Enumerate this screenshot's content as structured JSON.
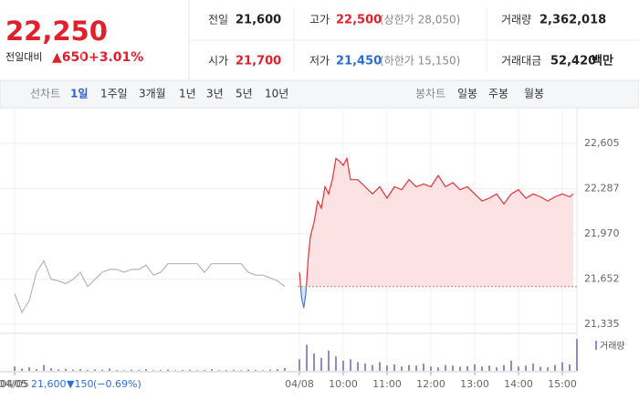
{
  "header": {
    "price": "22,250",
    "change_label": "전일대비",
    "change": "▲650",
    "change_rate": "+3.01%",
    "stats": [
      {
        "label": "전일",
        "value": "21,600"
      },
      {
        "label": "고가",
        "value": "22,500",
        "note": "(상한가 28,050)"
      },
      {
        "label": "거래량",
        "value": "2,362,018"
      },
      {
        "label": "시가",
        "value": "21,700"
      },
      {
        "label": "저가",
        "value": "21,450",
        "note": "(하한가 15,150)"
      },
      {
        "label": "거래대금",
        "value": "52,420",
        "unit": "백만"
      }
    ]
  },
  "tabs": {
    "line_label": "선차트",
    "line_periods": [
      "1일",
      "1주일",
      "3개월",
      "1년",
      "3년",
      "5년",
      "10년"
    ],
    "candle_label": "봉차트",
    "candle_periods": [
      "일봉",
      "주봉",
      "월봉"
    ]
  },
  "status": {
    "date": "04/05",
    "price": "21,600",
    "change": "▼150",
    "rate": "(−0.69%)"
  },
  "chart_data": [
    {
      "type": "line",
      "baseline": 21600,
      "xlim": [
        -410,
        380
      ],
      "ylim": [
        21271,
        22778
      ],
      "yticks": [
        {
          "value": 21335,
          "label": "21,335"
        },
        {
          "value": 21652,
          "label": "21,652"
        },
        {
          "value": 21970,
          "label": "21,970"
        },
        {
          "value": 22287,
          "label": "22,287"
        },
        {
          "value": 22605,
          "label": "22,605"
        }
      ],
      "xticks": [
        {
          "value": -390,
          "label": "04/05"
        },
        {
          "value": 0,
          "label": "04/08"
        },
        {
          "value": 60,
          "label": "10:00"
        },
        {
          "value": 120,
          "label": "11:00"
        },
        {
          "value": 180,
          "label": "12:00"
        },
        {
          "value": 240,
          "label": "13:00"
        },
        {
          "value": 300,
          "label": "14:00"
        },
        {
          "value": 360,
          "label": "15:00"
        }
      ],
      "series": [
        {
          "color": "#b5b5b5",
          "x": [
            -390,
            -380,
            -370,
            -360,
            -350,
            -340,
            -330,
            -320,
            -310,
            -300,
            -290,
            -280,
            -270,
            -260,
            -250,
            -240,
            -230,
            -220,
            -210,
            -200,
            -190,
            -180,
            -170,
            -160,
            -150,
            -140,
            -130,
            -120,
            -110,
            -100,
            -90,
            -80,
            -70,
            -60,
            -50,
            -40,
            -30,
            -20
          ],
          "values": [
            21550,
            21420,
            21500,
            21700,
            21780,
            21650,
            21640,
            21620,
            21650,
            21700,
            21600,
            21650,
            21700,
            21720,
            21720,
            21700,
            21720,
            21720,
            21750,
            21680,
            21700,
            21760,
            21760,
            21760,
            21760,
            21760,
            21700,
            21760,
            21760,
            21760,
            21760,
            21760,
            21700,
            21680,
            21680,
            21660,
            21640,
            21600
          ]
        },
        {
          "color": "#e8303a",
          "below_color": "#3d7dd8",
          "fill": "#fde2e3",
          "below_fill": "#d9e6fa",
          "x": [
            0,
            3,
            6,
            9,
            12,
            15,
            20,
            25,
            30,
            35,
            40,
            45,
            50,
            55,
            60,
            65,
            70,
            80,
            90,
            100,
            110,
            120,
            130,
            140,
            150,
            160,
            170,
            180,
            190,
            200,
            210,
            220,
            230,
            240,
            250,
            260,
            270,
            280,
            290,
            300,
            310,
            320,
            330,
            340,
            350,
            360,
            370,
            375
          ],
          "values": [
            21700,
            21520,
            21450,
            21560,
            21800,
            21950,
            22050,
            22200,
            22150,
            22300,
            22250,
            22350,
            22500,
            22480,
            22450,
            22500,
            22350,
            22350,
            22300,
            22250,
            22300,
            22220,
            22300,
            22280,
            22350,
            22300,
            22320,
            22300,
            22380,
            22300,
            22330,
            22280,
            22300,
            22250,
            22200,
            22220,
            22250,
            22180,
            22250,
            22280,
            22220,
            22250,
            22230,
            22200,
            22230,
            22250,
            22230,
            22250
          ]
        }
      ]
    },
    {
      "type": "bar",
      "xlim": [
        -410,
        380
      ],
      "ylim": [
        0,
        120000
      ],
      "series": [
        {
          "name": "거래량",
          "color": "#9486cf",
          "x": [
            -390,
            -380,
            -370,
            -360,
            -350,
            -340,
            -330,
            -320,
            -310,
            -300,
            -290,
            -280,
            -270,
            -260,
            -250,
            -240,
            -230,
            -220,
            -210,
            -200,
            -190,
            -180,
            -170,
            -160,
            -150,
            -140,
            -130,
            -120,
            -110,
            -100,
            -90,
            -80,
            -70,
            -60,
            -50,
            -40,
            -30,
            -20,
            0,
            10,
            20,
            30,
            40,
            50,
            60,
            70,
            80,
            90,
            100,
            110,
            120,
            130,
            140,
            150,
            160,
            170,
            180,
            190,
            200,
            210,
            220,
            230,
            240,
            250,
            260,
            270,
            280,
            290,
            300,
            310,
            320,
            330,
            340,
            350,
            360,
            370,
            380
          ],
          "values": [
            15000,
            8000,
            12000,
            6000,
            20000,
            9000,
            5000,
            7000,
            4000,
            6000,
            3000,
            5000,
            4000,
            8000,
            3000,
            2000,
            4000,
            3000,
            6000,
            2000,
            3000,
            5000,
            2000,
            3000,
            4000,
            2000,
            3000,
            6000,
            2000,
            3000,
            4000,
            2000,
            5000,
            3000,
            2000,
            4000,
            6000,
            10000,
            40000,
            90000,
            60000,
            45000,
            70000,
            50000,
            35000,
            40000,
            30000,
            25000,
            20000,
            30000,
            18000,
            22000,
            15000,
            20000,
            18000,
            25000,
            15000,
            12000,
            20000,
            18000,
            14000,
            16000,
            22000,
            15000,
            18000,
            12000,
            20000,
            35000,
            15000,
            18000,
            25000,
            14000,
            12000,
            20000,
            30000,
            22000,
            110000
          ]
        }
      ]
    }
  ]
}
